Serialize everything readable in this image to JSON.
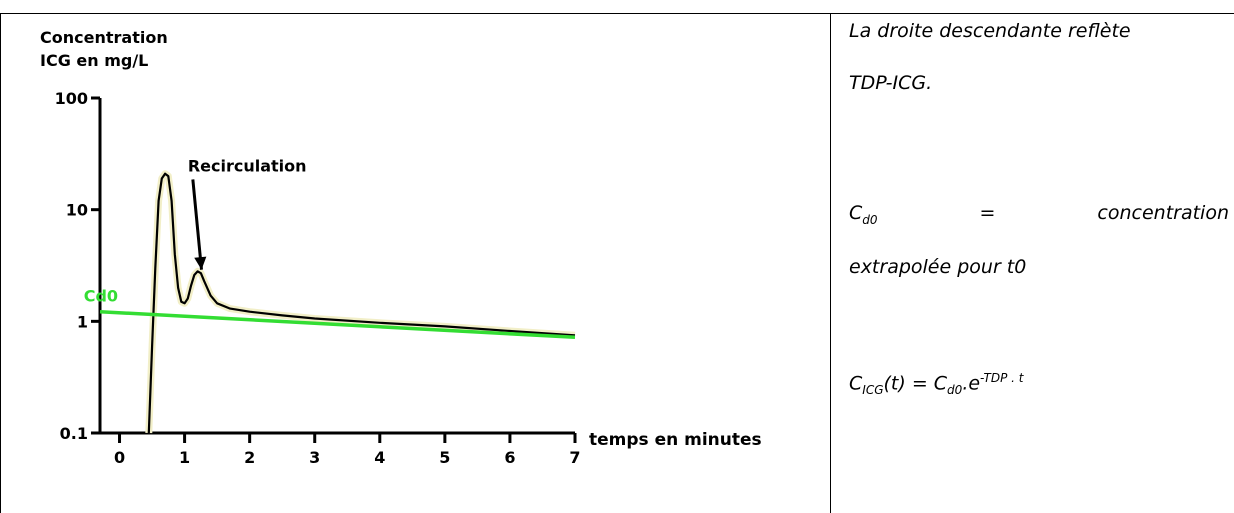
{
  "chart_data": {
    "type": "line",
    "ylabel_line1": "Concentration",
    "ylabel_line2": "ICG en mg/L",
    "xlabel": "temps en minutes",
    "y_scale": "log",
    "ylim": [
      0.1,
      100
    ],
    "xlim": [
      -0.3,
      7
    ],
    "y_ticks": [
      {
        "value": 100,
        "label": "100"
      },
      {
        "value": 10,
        "label": "10"
      },
      {
        "value": 1,
        "label": "1"
      },
      {
        "value": 0.1,
        "label": "0.1"
      }
    ],
    "x_ticks": [
      {
        "value": 0,
        "label": "0"
      },
      {
        "value": 1,
        "label": "1"
      },
      {
        "value": 2,
        "label": "2"
      },
      {
        "value": 3,
        "label": "3"
      },
      {
        "value": 4,
        "label": "4"
      },
      {
        "value": 5,
        "label": "5"
      },
      {
        "value": 6,
        "label": "6"
      },
      {
        "value": 7,
        "label": "7"
      }
    ],
    "series": [
      {
        "color": "#000000",
        "halo_color": "#f2efc8",
        "points": [
          [
            0.45,
            0.1
          ],
          [
            0.5,
            0.6
          ],
          [
            0.55,
            3
          ],
          [
            0.6,
            12
          ],
          [
            0.65,
            19
          ],
          [
            0.7,
            21
          ],
          [
            0.75,
            20
          ],
          [
            0.8,
            12
          ],
          [
            0.85,
            4
          ],
          [
            0.9,
            2
          ],
          [
            0.95,
            1.5
          ],
          [
            1.0,
            1.45
          ],
          [
            1.05,
            1.6
          ],
          [
            1.1,
            2.1
          ],
          [
            1.15,
            2.6
          ],
          [
            1.2,
            2.8
          ],
          [
            1.25,
            2.7
          ],
          [
            1.3,
            2.3
          ],
          [
            1.4,
            1.7
          ],
          [
            1.5,
            1.45
          ],
          [
            1.7,
            1.3
          ],
          [
            2.0,
            1.22
          ],
          [
            2.5,
            1.13
          ],
          [
            3,
            1.06
          ],
          [
            4,
            0.97
          ],
          [
            5,
            0.9
          ],
          [
            6,
            0.82
          ],
          [
            7,
            0.75
          ]
        ]
      },
      {
        "color": "#33dd33",
        "points": [
          [
            -0.3,
            1.22
          ],
          [
            7,
            0.72
          ]
        ]
      }
    ],
    "annotations": [
      {
        "text": "Recirculation",
        "x": 1.05,
        "y": 22,
        "arrow_to": [
          1.26,
          2.9
        ]
      },
      {
        "text": "Cd0",
        "color": "#33dd33",
        "x": -0.55,
        "y": 1.5
      }
    ]
  },
  "text_panel": {
    "line1": "La droite descendante reflète",
    "line2": "TDP-ICG.",
    "cd0_symbol": "C",
    "cd0_sub": "d0",
    "cd0_equals": "=",
    "cd0_word": "concentration",
    "line4": "extrapolée pour t0",
    "formula": {
      "c1": "C",
      "c1_sub": "ICG",
      "mid": "(t) = C",
      "c2_sub": "d0",
      "dot_e": ".e",
      "exp": "-TDP . t"
    }
  }
}
